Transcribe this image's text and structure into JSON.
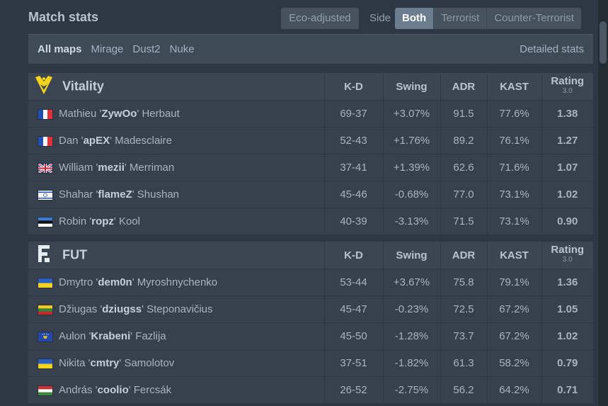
{
  "header": {
    "title": "Match stats",
    "eco_label": "Eco-adjusted",
    "side_label": "Side",
    "side_options": [
      "Both",
      "Terrorist",
      "Counter-Terrorist"
    ],
    "side_selected": "Both"
  },
  "maps": {
    "items": [
      "All maps",
      "Mirage",
      "Dust2",
      "Nuke"
    ],
    "selected": "All maps",
    "detailed_label": "Detailed stats"
  },
  "columns": {
    "kd": "K-D",
    "swing": "Swing",
    "adr": "ADR",
    "kast": "KAST",
    "rating": "Rating",
    "rating_sub": "3.0"
  },
  "colors": {
    "positive": "#3fc43f",
    "negative": "#e0434e",
    "vitality_logo": "#f5d31a"
  },
  "teams": [
    {
      "name": "Vitality",
      "logo_icon": "vitality-bee-icon",
      "players": [
        {
          "first": "Mathieu",
          "nick": "ZywOo",
          "last": "Herbaut",
          "flag": "fr",
          "kd": "69-37",
          "swing": "+3.07%",
          "adr": "91.5",
          "kast": "77.6%",
          "rating": "1.38"
        },
        {
          "first": "Dan",
          "nick": "apEX",
          "last": "Madesclaire",
          "flag": "fr",
          "kd": "52-43",
          "swing": "+1.76%",
          "adr": "89.2",
          "kast": "76.1%",
          "rating": "1.27"
        },
        {
          "first": "William",
          "nick": "mezii",
          "last": "Merriman",
          "flag": "gb",
          "kd": "37-41",
          "swing": "+1.39%",
          "adr": "62.6",
          "kast": "71.6%",
          "rating": "1.07"
        },
        {
          "first": "Shahar",
          "nick": "flameZ",
          "last": "Shushan",
          "flag": "il",
          "kd": "45-46",
          "swing": "-0.68%",
          "adr": "77.0",
          "kast": "73.1%",
          "rating": "1.02"
        },
        {
          "first": "Robin",
          "nick": "ropz",
          "last": "Kool",
          "flag": "ee",
          "kd": "40-39",
          "swing": "-3.13%",
          "adr": "71.5",
          "kast": "73.1%",
          "rating": "0.90"
        }
      ]
    },
    {
      "name": "FUT",
      "logo_icon": "fut-logo-icon",
      "players": [
        {
          "first": "Dmytro",
          "nick": "dem0n",
          "last": "Myroshnychenko",
          "flag": "ua",
          "kd": "53-44",
          "swing": "+3.67%",
          "adr": "75.8",
          "kast": "79.1%",
          "rating": "1.36"
        },
        {
          "first": "Džiugas",
          "nick": "dziugss",
          "last": "Steponavičius",
          "flag": "lt",
          "kd": "45-47",
          "swing": "-0.23%",
          "adr": "72.5",
          "kast": "67.2%",
          "rating": "1.05"
        },
        {
          "first": "Aulon",
          "nick": "Krabeni",
          "last": "Fazlija",
          "flag": "xk",
          "kd": "45-50",
          "swing": "-1.28%",
          "adr": "73.7",
          "kast": "67.2%",
          "rating": "1.02"
        },
        {
          "first": "Nikita",
          "nick": "cmtry",
          "last": "Samolotov",
          "flag": "ua",
          "kd": "37-51",
          "swing": "-1.82%",
          "adr": "61.3",
          "kast": "58.2%",
          "rating": "0.79"
        },
        {
          "first": "András",
          "nick": "coolio",
          "last": "Fercsák",
          "flag": "hu",
          "kd": "26-52",
          "swing": "-2.75%",
          "adr": "56.2",
          "kast": "64.2%",
          "rating": "0.71"
        }
      ]
    }
  ]
}
